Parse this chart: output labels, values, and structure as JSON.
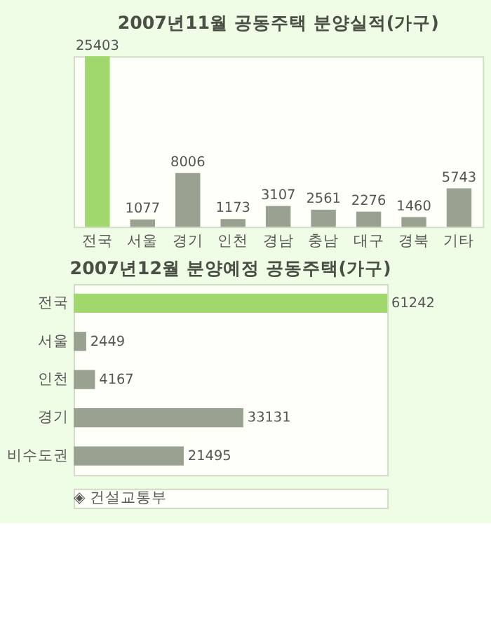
{
  "chart_data": [
    {
      "type": "bar",
      "title": "2007년11월 공동주택 분양실적(가구)",
      "categories": [
        "전국",
        "서울",
        "경기",
        "인천",
        "경남",
        "충남",
        "대구",
        "경북",
        "기타"
      ],
      "values": [
        25403,
        1077,
        8006,
        1173,
        3107,
        2561,
        2276,
        1460,
        5743
      ],
      "colors": [
        "#a0d86e",
        "#99a290",
        "#99a290",
        "#99a290",
        "#99a290",
        "#99a290",
        "#99a290",
        "#99a290",
        "#99a290"
      ],
      "data_labels": true,
      "grid": false,
      "legend": false
    },
    {
      "type": "bar",
      "orientation": "horizontal",
      "title": "2007년12월 분양예정 공동주택(가구)",
      "categories": [
        "전국",
        "서울",
        "인천",
        "경기",
        "비수도권"
      ],
      "values": [
        61242,
        2449,
        4167,
        33131,
        21495
      ],
      "colors": [
        "#a0d86e",
        "#99a290",
        "#99a290",
        "#99a290",
        "#99a290"
      ],
      "data_labels": true,
      "grid": false,
      "legend": false,
      "annotations": [
        "◈ 건설교통부"
      ]
    }
  ]
}
